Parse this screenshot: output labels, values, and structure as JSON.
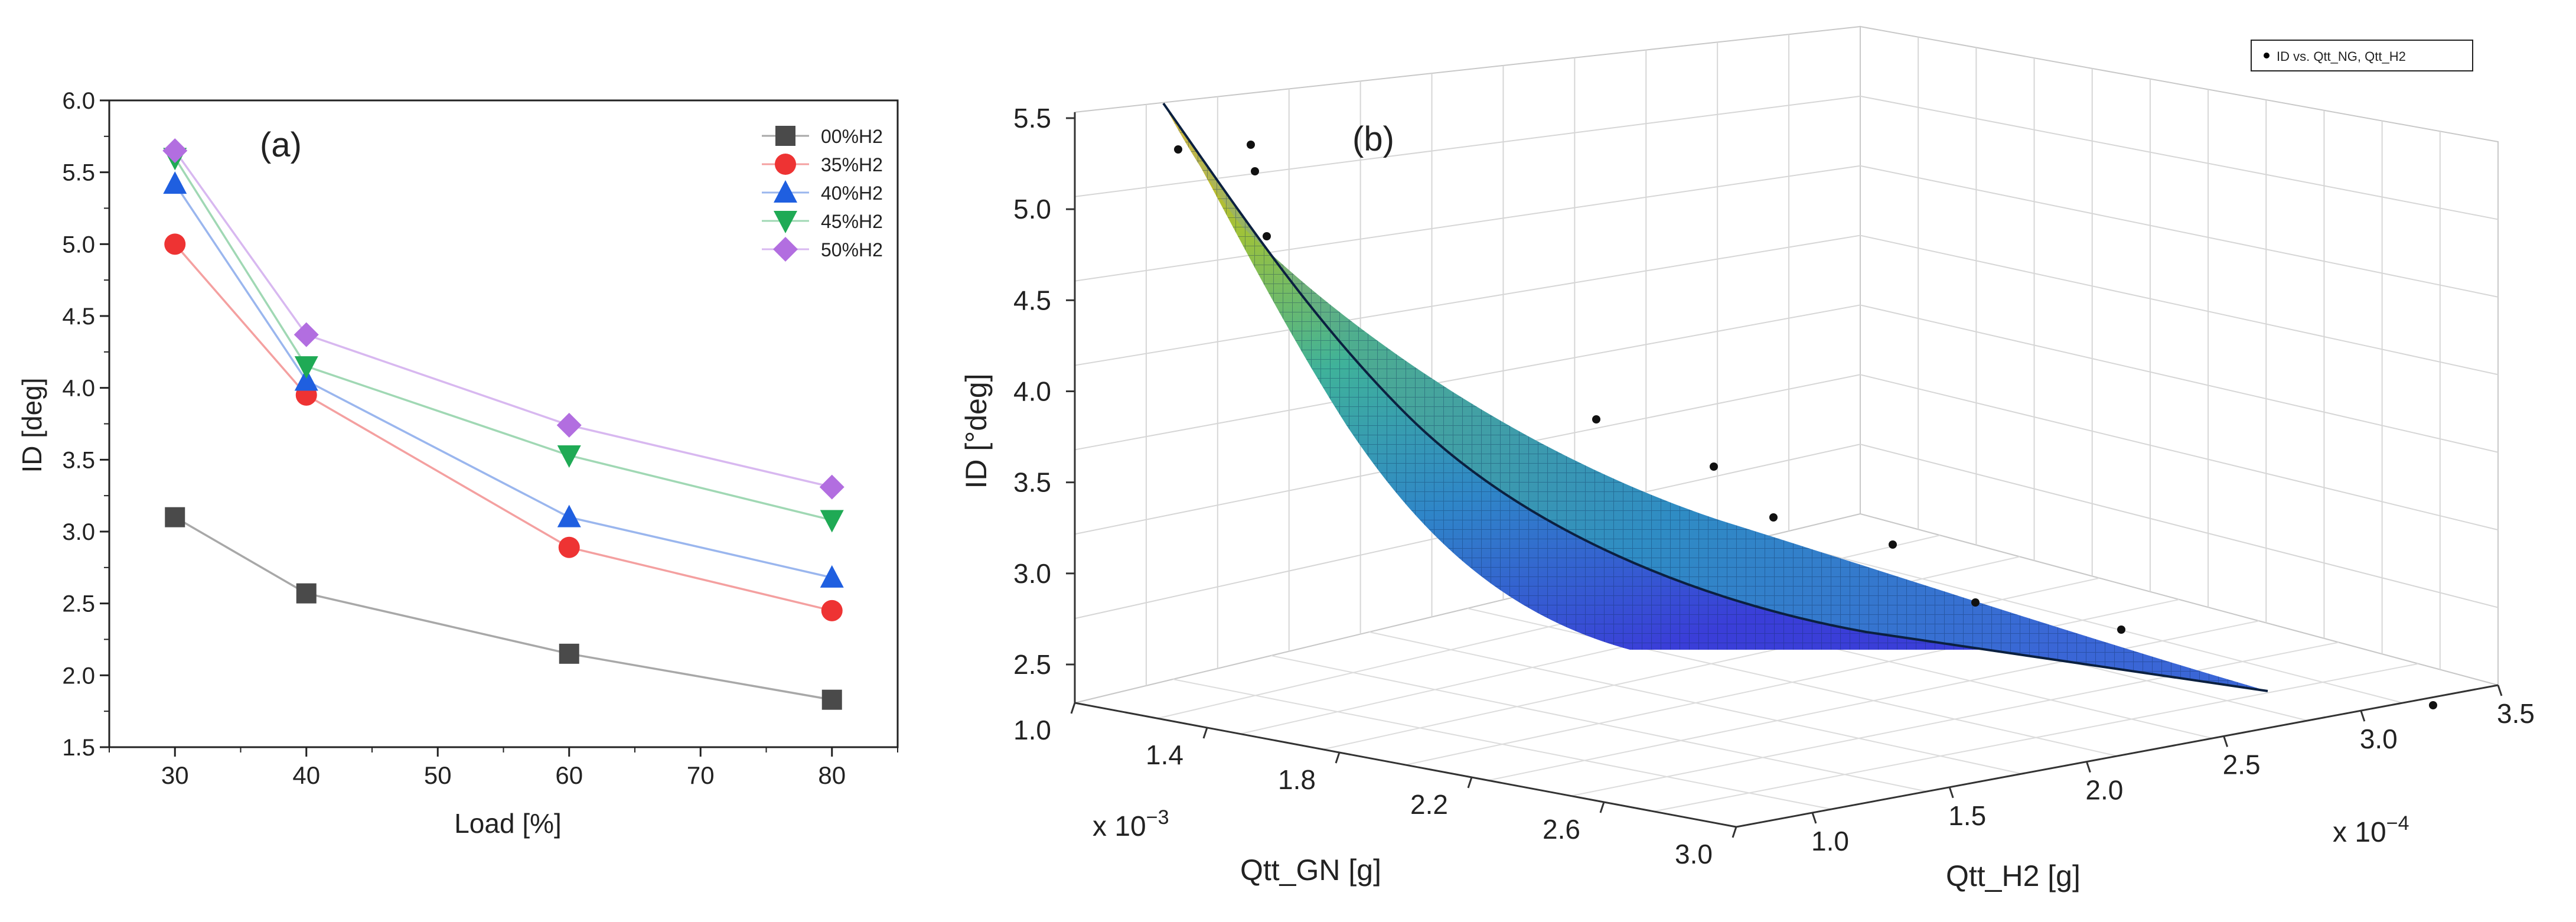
{
  "chart_data": [
    {
      "panel": "(a)",
      "type": "line",
      "xlabel": "Load [%]",
      "ylabel": "ID [deg]",
      "xlim": [
        25,
        85
      ],
      "ylim": [
        1.5,
        6.0
      ],
      "xticks": [
        30,
        40,
        50,
        60,
        70,
        80
      ],
      "yticks": [
        1.5,
        2.0,
        2.5,
        3.0,
        3.5,
        4.0,
        4.5,
        5.0,
        5.5,
        6.0
      ],
      "x": [
        30,
        40,
        60,
        80
      ],
      "legend_position": "top-right",
      "grid": false,
      "series": [
        {
          "name": "00%H2",
          "marker": "square",
          "color": "#4a4a4a",
          "line_color": "#a8a8a8",
          "values": [
            3.1,
            2.57,
            2.15,
            1.83
          ]
        },
        {
          "name": "35%H2",
          "marker": "circle",
          "color": "#ee3333",
          "line_color": "#f4a0a0",
          "values": [
            5.0,
            3.95,
            2.89,
            2.45
          ]
        },
        {
          "name": "40%H2",
          "marker": "triangle-up",
          "color": "#1f5fe0",
          "line_color": "#9ab6ee",
          "values": [
            5.42,
            4.05,
            3.1,
            2.68
          ]
        },
        {
          "name": "45%H2",
          "marker": "triangle-down",
          "color": "#1faa55",
          "line_color": "#a0d8b4",
          "values": [
            5.6,
            4.15,
            3.53,
            3.08
          ]
        },
        {
          "name": "50%H2",
          "marker": "diamond",
          "color": "#b26ee0",
          "line_color": "#d8b8f0",
          "values": [
            5.65,
            4.37,
            3.74,
            3.31
          ]
        }
      ]
    },
    {
      "panel": "(b)",
      "type": "surface",
      "zlabel": "ID [°deg]",
      "xlabel": "Qtt_GN [g]",
      "ylabel": "Qtt_H2 [g]",
      "x_multiplier": "x 10",
      "x_exponent": "−3",
      "y_multiplier": "x 10",
      "y_exponent": "−4",
      "zticks": [
        "2.5",
        "3.0",
        "3.5",
        "4.0",
        "4.5",
        "5.0",
        "5.5"
      ],
      "xticks": [
        "1.0",
        "1.4",
        "1.8",
        "2.2",
        "2.6",
        "3.0"
      ],
      "yticks": [
        "1.0",
        "1.5",
        "2.0",
        "2.5",
        "3.0",
        "3.5"
      ],
      "xlim": [
        1.0,
        3.0
      ],
      "ylim": [
        1.0,
        3.5
      ],
      "zlim": [
        2.3,
        5.6
      ],
      "legend_label": "ID vs. Qtt_NG, Qtt_H2",
      "legend_position": "top-right",
      "grid": true
    }
  ]
}
